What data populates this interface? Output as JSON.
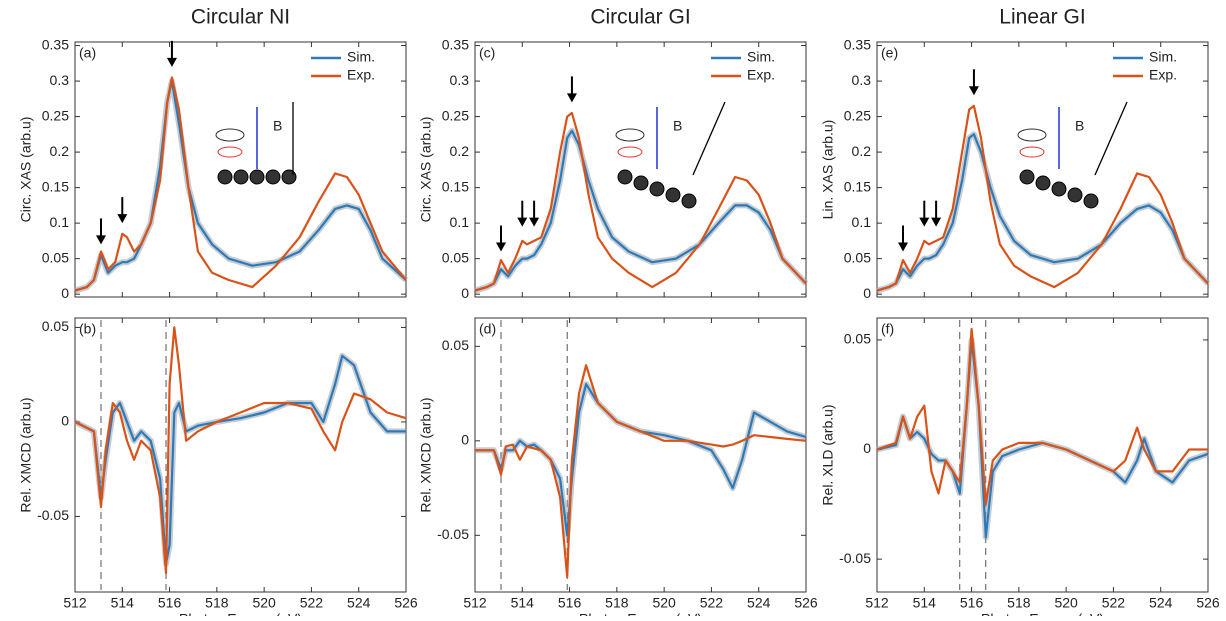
{
  "chart_data": [
    {
      "type": "line",
      "title": "Circular NI",
      "panel_label": "(a)",
      "ylabel": "Circ. XAS (arb.u)",
      "legend": true,
      "inset_label": "B",
      "xlim": [
        512,
        526
      ],
      "xticks": [
        512,
        514,
        516,
        518,
        520,
        522,
        524,
        526
      ],
      "ylim": [
        -0.004,
        0.355
      ],
      "yticks": [
        0,
        0.05,
        0.1,
        0.15,
        0.2,
        0.25,
        0.3,
        0.35
      ],
      "x": [
        512,
        512.5,
        512.8,
        513.1,
        513.4,
        513.7,
        514,
        514.2,
        514.5,
        514.8,
        515.2,
        515.6,
        515.9,
        516.1,
        516.4,
        516.8,
        517.2,
        517.8,
        518.5,
        519.5,
        520.5,
        521.5,
        522.3,
        523,
        523.5,
        524,
        524.5,
        525,
        526
      ],
      "series": [
        {
          "name": "Sim.",
          "color": "#2b7bba",
          "values": [
            0.005,
            0.01,
            0.02,
            0.055,
            0.03,
            0.04,
            0.045,
            0.045,
            0.05,
            0.07,
            0.1,
            0.18,
            0.27,
            0.3,
            0.24,
            0.15,
            0.1,
            0.07,
            0.05,
            0.04,
            0.045,
            0.06,
            0.09,
            0.12,
            0.125,
            0.12,
            0.09,
            0.05,
            0.02
          ]
        },
        {
          "name": "Exp.",
          "color": "#d95319",
          "values": [
            0.005,
            0.01,
            0.02,
            0.06,
            0.035,
            0.045,
            0.085,
            0.08,
            0.06,
            0.07,
            0.1,
            0.16,
            0.27,
            0.305,
            0.26,
            0.15,
            0.06,
            0.03,
            0.02,
            0.01,
            0.04,
            0.08,
            0.13,
            0.17,
            0.165,
            0.14,
            0.1,
            0.06,
            0.02
          ]
        }
      ],
      "arrows": [
        [
          513.1,
          0.07
        ],
        [
          514,
          0.1
        ],
        [
          516.1,
          0.32
        ]
      ]
    },
    {
      "type": "line",
      "panel_label": "(b)",
      "ylabel": "Rel. XMCD (arb.u)",
      "xlabel": "Photon Energy (eV)",
      "legend": false,
      "xlim": [
        512,
        526
      ],
      "xticks": [
        512,
        514,
        516,
        518,
        520,
        522,
        524,
        526
      ],
      "ylim": [
        -0.09,
        0.055
      ],
      "yticks": [
        -0.05,
        0,
        0.05
      ],
      "x": [
        512,
        512.8,
        513.1,
        513.3,
        513.6,
        513.9,
        514.2,
        514.5,
        514.8,
        515.2,
        515.6,
        515.85,
        516,
        516.2,
        516.4,
        516.7,
        517.2,
        518,
        519,
        520,
        521,
        522,
        522.5,
        523,
        523.3,
        523.8,
        524.5,
        525.2,
        526
      ],
      "series": [
        {
          "name": "Sim.",
          "color": "#2b7bba",
          "values": [
            0,
            -0.005,
            -0.04,
            -0.02,
            0.005,
            0.01,
            0,
            -0.01,
            -0.005,
            -0.01,
            -0.03,
            -0.075,
            -0.065,
            0.005,
            0.01,
            -0.005,
            -0.002,
            0,
            0.002,
            0.005,
            0.01,
            0.01,
            0,
            0.02,
            0.035,
            0.03,
            0.005,
            -0.005,
            -0.005
          ]
        },
        {
          "name": "Exp.",
          "color": "#d95319",
          "values": [
            0,
            -0.005,
            -0.045,
            -0.015,
            0.01,
            0.005,
            -0.01,
            -0.02,
            -0.01,
            -0.015,
            -0.04,
            -0.08,
            0.02,
            0.05,
            0.03,
            -0.01,
            -0.005,
            0,
            0.005,
            0.01,
            0.01,
            0.007,
            -0.005,
            -0.015,
            0,
            0.015,
            0.012,
            0.005,
            0.002
          ]
        }
      ],
      "vlines": [
        513.1,
        515.85
      ]
    },
    {
      "type": "line",
      "title": "Circular GI",
      "panel_label": "(c)",
      "ylabel": "Circ. XAS (arb.u)",
      "legend": true,
      "inset_label": "B",
      "xlim": [
        512,
        526
      ],
      "xticks": [
        512,
        514,
        516,
        518,
        520,
        522,
        524,
        526
      ],
      "ylim": [
        -0.004,
        0.355
      ],
      "yticks": [
        0,
        0.05,
        0.1,
        0.15,
        0.2,
        0.25,
        0.3,
        0.35
      ],
      "x": [
        512,
        512.5,
        512.8,
        513.1,
        513.4,
        513.7,
        514,
        514.2,
        514.5,
        514.8,
        515.2,
        515.6,
        515.9,
        516.1,
        516.4,
        516.8,
        517.2,
        517.8,
        518.5,
        519.5,
        520.5,
        521.5,
        522.3,
        523,
        523.5,
        524,
        524.5,
        525,
        526
      ],
      "series": [
        {
          "name": "Sim.",
          "color": "#2b7bba",
          "values": [
            0.005,
            0.01,
            0.015,
            0.035,
            0.025,
            0.04,
            0.05,
            0.05,
            0.055,
            0.07,
            0.1,
            0.16,
            0.22,
            0.23,
            0.21,
            0.16,
            0.12,
            0.08,
            0.06,
            0.045,
            0.05,
            0.07,
            0.1,
            0.125,
            0.125,
            0.115,
            0.09,
            0.05,
            0.015
          ]
        },
        {
          "name": "Exp.",
          "color": "#d95319",
          "values": [
            0.005,
            0.01,
            0.015,
            0.048,
            0.03,
            0.05,
            0.075,
            0.07,
            0.075,
            0.08,
            0.12,
            0.2,
            0.25,
            0.255,
            0.22,
            0.14,
            0.08,
            0.05,
            0.03,
            0.01,
            0.03,
            0.07,
            0.12,
            0.165,
            0.16,
            0.14,
            0.1,
            0.05,
            0.015
          ]
        }
      ],
      "arrows": [
        [
          513.1,
          0.06
        ],
        [
          514,
          0.095
        ],
        [
          514.5,
          0.095
        ],
        [
          516.1,
          0.27
        ]
      ]
    },
    {
      "type": "line",
      "panel_label": "(d)",
      "ylabel": "Rel. XMCD (arb.u)",
      "xlabel": "Photon Energy (eV)",
      "legend": false,
      "xlim": [
        512,
        526
      ],
      "xticks": [
        512,
        514,
        516,
        518,
        520,
        522,
        524,
        526
      ],
      "ylim": [
        -0.08,
        0.065
      ],
      "yticks": [
        -0.05,
        0,
        0.05
      ],
      "x": [
        512,
        512.8,
        513.1,
        513.3,
        513.6,
        513.9,
        514.2,
        514.5,
        514.8,
        515.2,
        515.6,
        515.9,
        516.1,
        516.4,
        516.7,
        517.2,
        518,
        519,
        520,
        521,
        522,
        522.5,
        522.9,
        523.3,
        523.8,
        524.5,
        525.2,
        526
      ],
      "series": [
        {
          "name": "Sim.",
          "color": "#2b7bba",
          "values": [
            -0.005,
            -0.005,
            -0.015,
            -0.005,
            -0.005,
            0,
            -0.003,
            -0.002,
            -0.005,
            -0.01,
            -0.02,
            -0.05,
            -0.02,
            0.015,
            0.03,
            0.02,
            0.01,
            0.005,
            0.003,
            0,
            -0.005,
            -0.015,
            -0.025,
            -0.01,
            0.015,
            0.01,
            0.005,
            0.002
          ]
        },
        {
          "name": "Exp.",
          "color": "#d95319",
          "values": [
            -0.005,
            -0.005,
            -0.018,
            -0.003,
            -0.002,
            -0.01,
            -0.003,
            -0.004,
            -0.005,
            -0.01,
            -0.03,
            -0.072,
            -0.01,
            0.025,
            0.04,
            0.02,
            0.01,
            0.005,
            0,
            0,
            -0.002,
            -0.003,
            -0.002,
            0,
            0.003,
            0.002,
            0.001,
            0
          ]
        }
      ],
      "vlines": [
        513.1,
        515.9
      ]
    },
    {
      "type": "line",
      "title": "Linear GI",
      "panel_label": "(e)",
      "ylabel": "Lin. XAS (arb.u)",
      "legend": true,
      "inset_label": "B",
      "xlim": [
        512,
        526
      ],
      "xticks": [
        512,
        514,
        516,
        518,
        520,
        522,
        524,
        526
      ],
      "ylim": [
        -0.004,
        0.355
      ],
      "yticks": [
        0,
        0.05,
        0.1,
        0.15,
        0.2,
        0.25,
        0.3,
        0.35
      ],
      "x": [
        512,
        512.5,
        512.8,
        513.1,
        513.4,
        513.7,
        514,
        514.2,
        514.5,
        514.8,
        515.2,
        515.6,
        515.9,
        516.1,
        516.4,
        516.8,
        517.2,
        517.8,
        518.5,
        519.5,
        520.5,
        521.5,
        522.3,
        523,
        523.5,
        524,
        524.5,
        525,
        526
      ],
      "series": [
        {
          "name": "Sim.",
          "color": "#2b7bba",
          "values": [
            0.005,
            0.01,
            0.015,
            0.035,
            0.025,
            0.04,
            0.05,
            0.05,
            0.055,
            0.07,
            0.1,
            0.16,
            0.22,
            0.225,
            0.2,
            0.15,
            0.11,
            0.075,
            0.055,
            0.045,
            0.05,
            0.07,
            0.1,
            0.12,
            0.125,
            0.115,
            0.09,
            0.05,
            0.015
          ]
        },
        {
          "name": "Exp.",
          "color": "#d95319",
          "values": [
            0.005,
            0.01,
            0.015,
            0.048,
            0.03,
            0.05,
            0.075,
            0.07,
            0.075,
            0.08,
            0.12,
            0.2,
            0.26,
            0.265,
            0.22,
            0.13,
            0.07,
            0.04,
            0.025,
            0.01,
            0.03,
            0.07,
            0.12,
            0.17,
            0.165,
            0.14,
            0.1,
            0.05,
            0.015
          ]
        }
      ],
      "arrows": [
        [
          513.1,
          0.06
        ],
        [
          514,
          0.095
        ],
        [
          514.5,
          0.095
        ],
        [
          516.1,
          0.28
        ]
      ]
    },
    {
      "type": "line",
      "panel_label": "(f)",
      "ylabel": "Rel. XLD (arb.u)",
      "xlabel": "Photon Energy (eV)",
      "legend": false,
      "xlim": [
        512,
        526
      ],
      "xticks": [
        512,
        514,
        516,
        518,
        520,
        522,
        524,
        526
      ],
      "ylim": [
        -0.065,
        0.06
      ],
      "yticks": [
        -0.05,
        0,
        0.05
      ],
      "x": [
        512,
        512.8,
        513.1,
        513.4,
        513.7,
        514,
        514.3,
        514.6,
        514.9,
        515.2,
        515.5,
        515.8,
        516,
        516.3,
        516.6,
        516.9,
        517.3,
        518,
        519,
        520,
        521,
        522,
        522.5,
        523,
        523.3,
        523.8,
        524.5,
        525.2,
        526
      ],
      "series": [
        {
          "name": "Sim.",
          "color": "#2b7bba",
          "values": [
            0,
            0.002,
            0.015,
            0.005,
            0.008,
            0.005,
            -0.002,
            -0.005,
            -0.005,
            -0.01,
            -0.02,
            0.02,
            0.05,
            0.02,
            -0.04,
            -0.01,
            -0.003,
            0,
            0.003,
            0,
            -0.005,
            -0.01,
            -0.015,
            -0.005,
            0.005,
            -0.01,
            -0.015,
            -0.005,
            -0.002
          ]
        },
        {
          "name": "Exp.",
          "color": "#d95319",
          "values": [
            0,
            0.003,
            0.015,
            0.005,
            0.015,
            0.02,
            -0.01,
            -0.02,
            -0.005,
            -0.01,
            -0.015,
            0.02,
            0.055,
            0.02,
            -0.025,
            -0.005,
            0,
            0.003,
            0.003,
            0,
            -0.005,
            -0.01,
            -0.005,
            0.01,
            0,
            -0.01,
            -0.01,
            0,
            0
          ]
        }
      ],
      "vlines": [
        515.5,
        516.6
      ]
    }
  ]
}
